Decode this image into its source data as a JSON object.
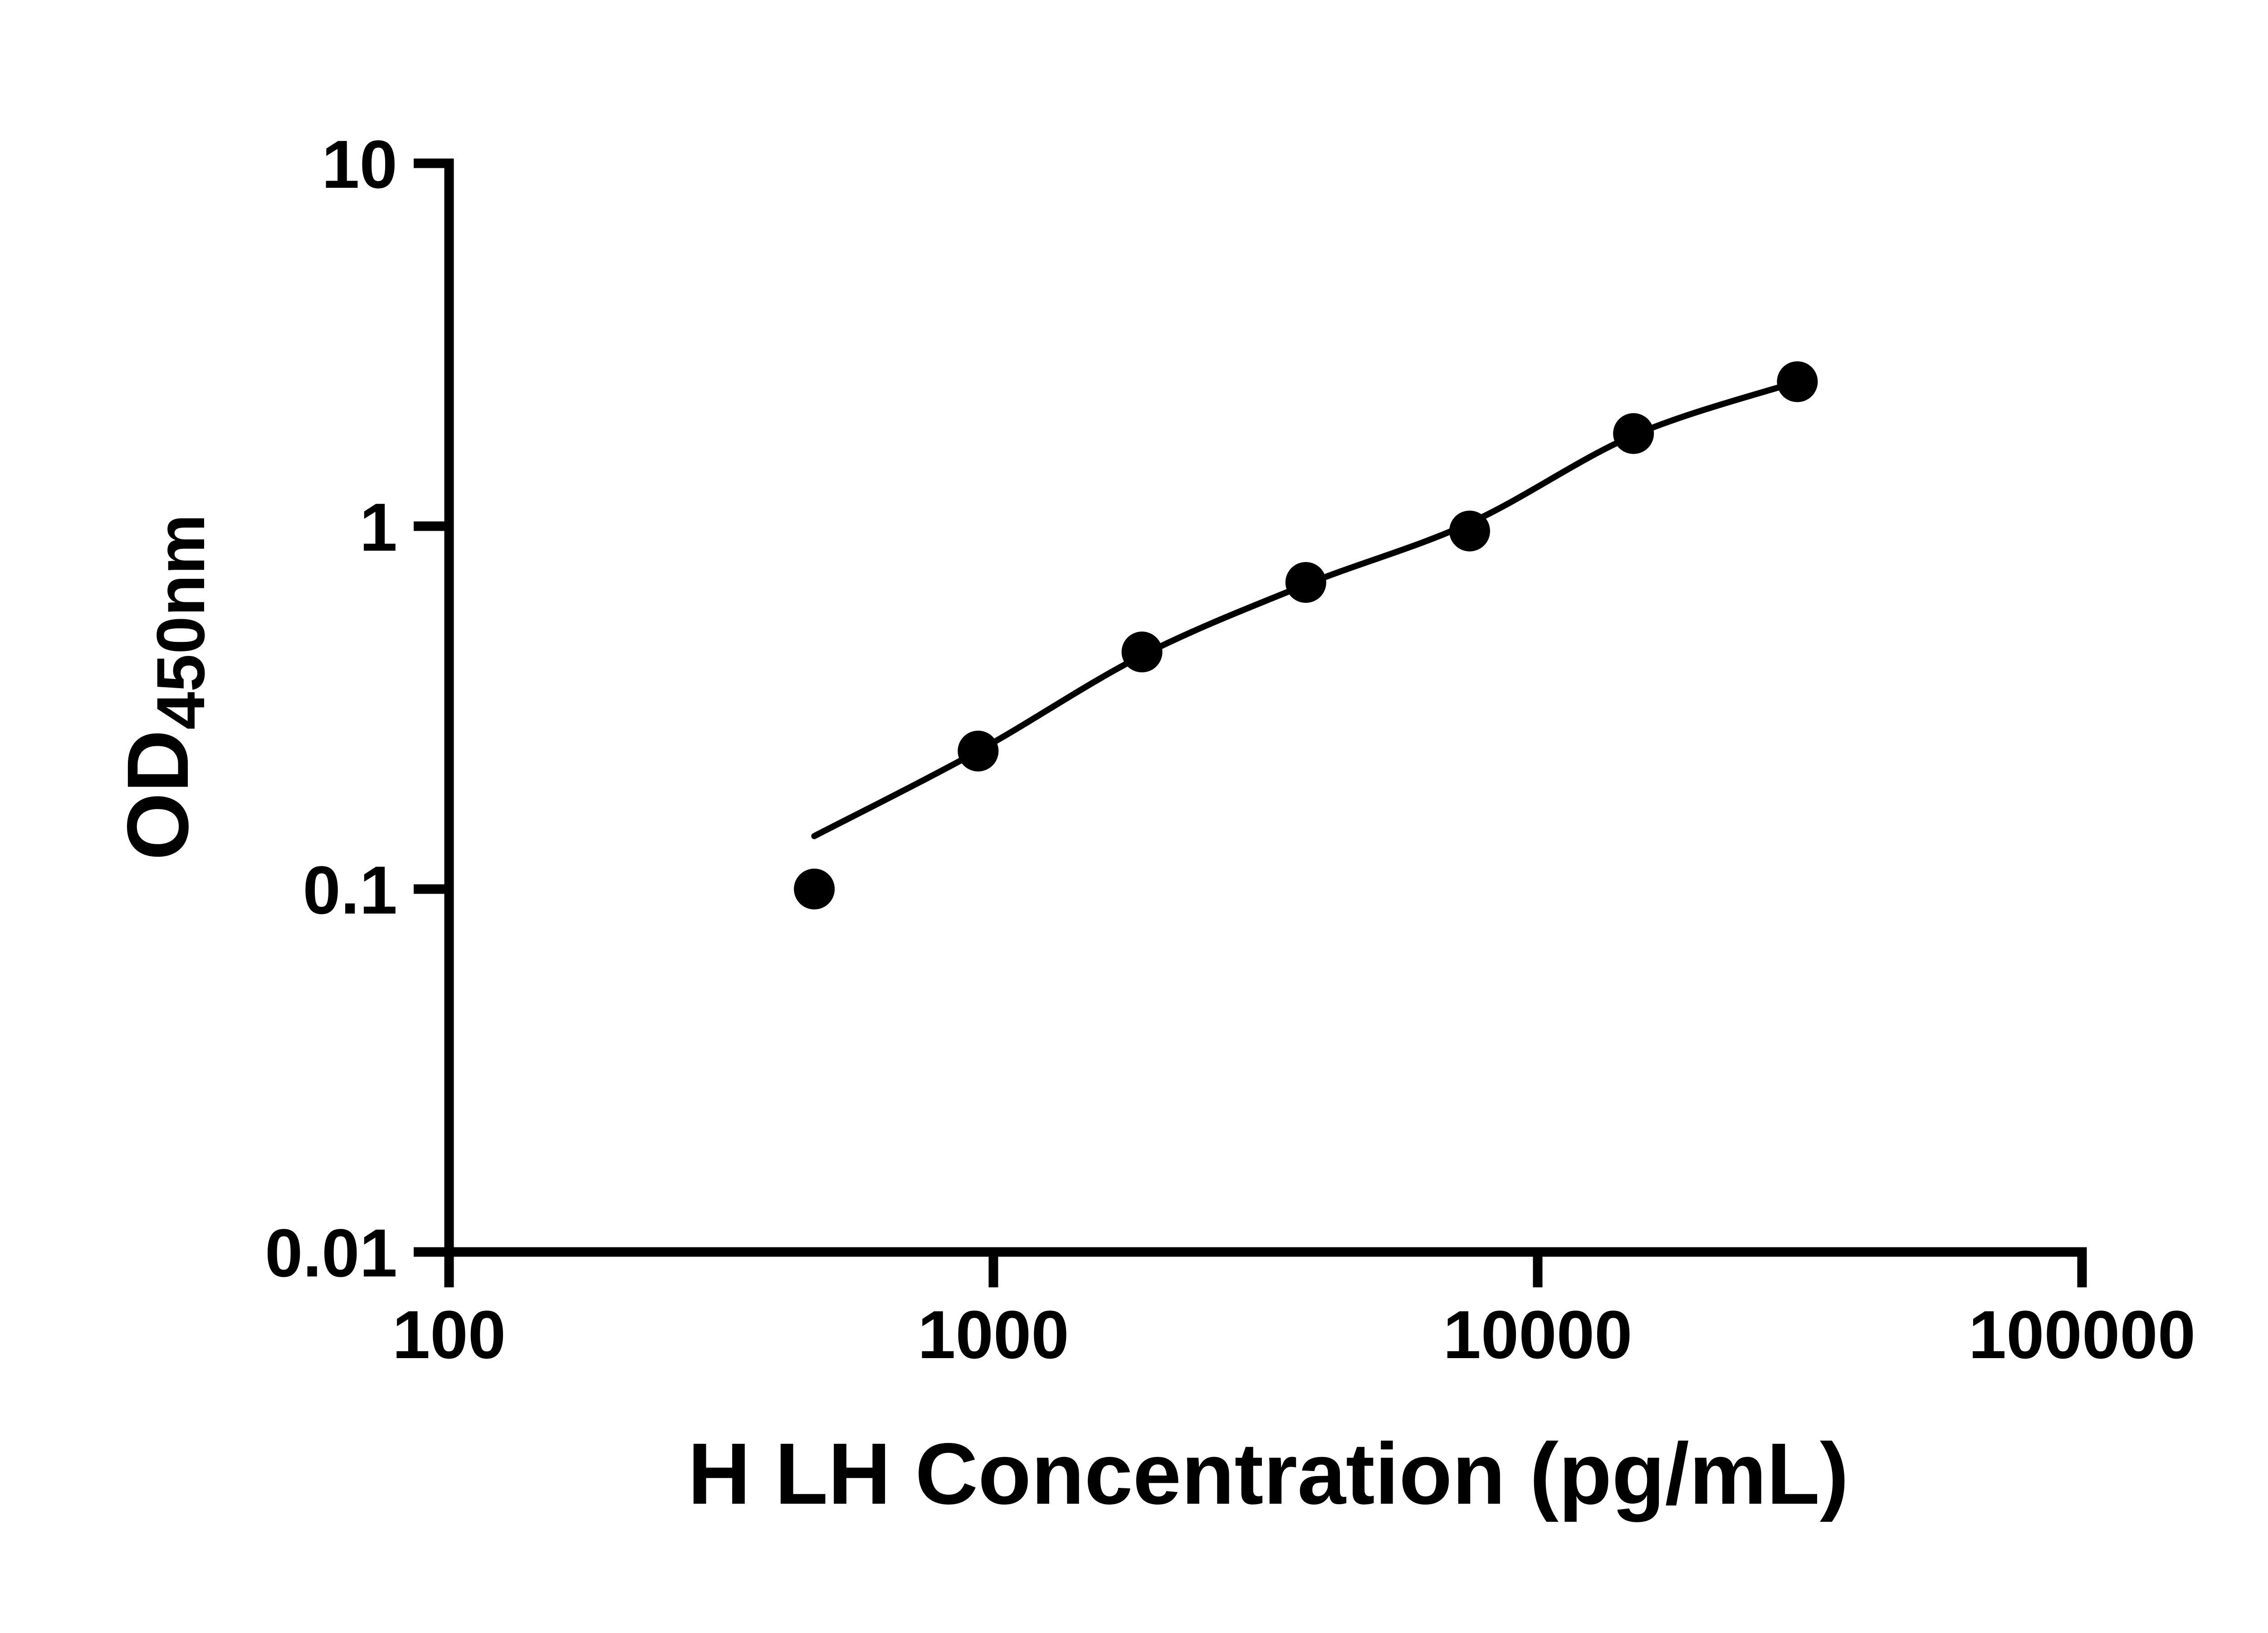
{
  "figure": {
    "background": "#ffffff",
    "foreground": "#000000"
  },
  "chart_data": {
    "type": "scatter",
    "title": "",
    "xlabel": "H LH Concentration (pg/mL)",
    "ylabel": "OD450nm",
    "ylabel_main": "OD",
    "ylabel_sub": "450nm",
    "x_scale": "log10",
    "y_scale": "log10",
    "xlim": [
      100,
      100000
    ],
    "ylim": [
      0.01,
      10
    ],
    "grid": false,
    "legend": "none",
    "x_ticks": [
      {
        "value": 100,
        "label": "100"
      },
      {
        "value": 1000,
        "label": "1000"
      },
      {
        "value": 10000,
        "label": "10000"
      },
      {
        "value": 100000,
        "label": "100000"
      }
    ],
    "y_ticks": [
      {
        "value": 0.01,
        "label": "0.01"
      },
      {
        "value": 0.1,
        "label": "0.1"
      },
      {
        "value": 1,
        "label": "1"
      },
      {
        "value": 10,
        "label": "10"
      }
    ],
    "series": [
      {
        "name": "H LH standards",
        "marker": "filled-circle",
        "color": "#000000",
        "x": [
          468.75,
          937.5,
          1875,
          3750,
          7500,
          15000,
          30000
        ],
        "y": [
          0.1,
          0.24,
          0.45,
          0.7,
          0.97,
          1.8,
          2.5
        ]
      }
    ],
    "fit_line": {
      "name": "fitted-standard-curve",
      "color": "#000000",
      "x": [
        468.75,
        937.5,
        1875,
        3750,
        7500,
        15000,
        30000
      ],
      "y": [
        0.14,
        0.24,
        0.44,
        0.69,
        1.02,
        1.78,
        2.5
      ]
    }
  }
}
